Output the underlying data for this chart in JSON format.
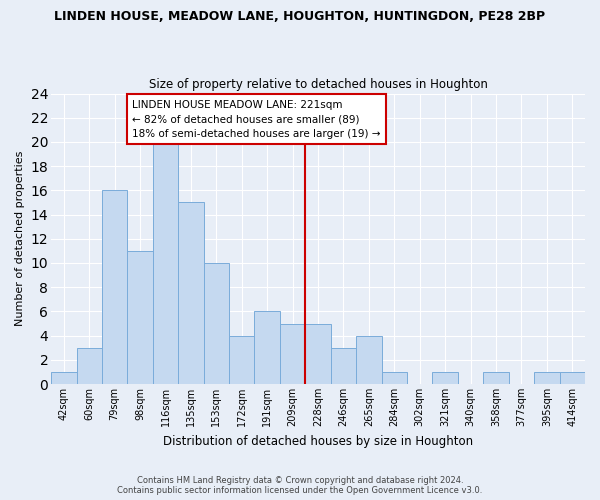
{
  "title": "LINDEN HOUSE, MEADOW LANE, HOUGHTON, HUNTINGDON, PE28 2BP",
  "subtitle": "Size of property relative to detached houses in Houghton",
  "xlabel": "Distribution of detached houses by size in Houghton",
  "ylabel": "Number of detached properties",
  "bar_labels": [
    "42sqm",
    "60sqm",
    "79sqm",
    "98sqm",
    "116sqm",
    "135sqm",
    "153sqm",
    "172sqm",
    "191sqm",
    "209sqm",
    "228sqm",
    "246sqm",
    "265sqm",
    "284sqm",
    "302sqm",
    "321sqm",
    "340sqm",
    "358sqm",
    "377sqm",
    "395sqm",
    "414sqm"
  ],
  "bar_heights": [
    1,
    3,
    16,
    11,
    20,
    15,
    10,
    4,
    6,
    5,
    5,
    3,
    4,
    1,
    0,
    1,
    0,
    1,
    0,
    1,
    1
  ],
  "bar_color": "#c5d9f0",
  "bar_edge_color": "#7aacda",
  "ref_line_color": "#cc0000",
  "annotation_text": "LINDEN HOUSE MEADOW LANE: 221sqm\n← 82% of detached houses are smaller (89)\n18% of semi-detached houses are larger (19) →",
  "annotation_box_facecolor": "#ffffff",
  "annotation_box_edgecolor": "#cc0000",
  "ylim": [
    0,
    24
  ],
  "yticks": [
    0,
    2,
    4,
    6,
    8,
    10,
    12,
    14,
    16,
    18,
    20,
    22,
    24
  ],
  "footer_line1": "Contains HM Land Registry data © Crown copyright and database right 2024.",
  "footer_line2": "Contains public sector information licensed under the Open Government Licence v3.0.",
  "fig_bg_color": "#e8eef7",
  "plot_bg_color": "#e8eef7",
  "grid_color": "#ffffff",
  "ref_line_index": 9.5
}
